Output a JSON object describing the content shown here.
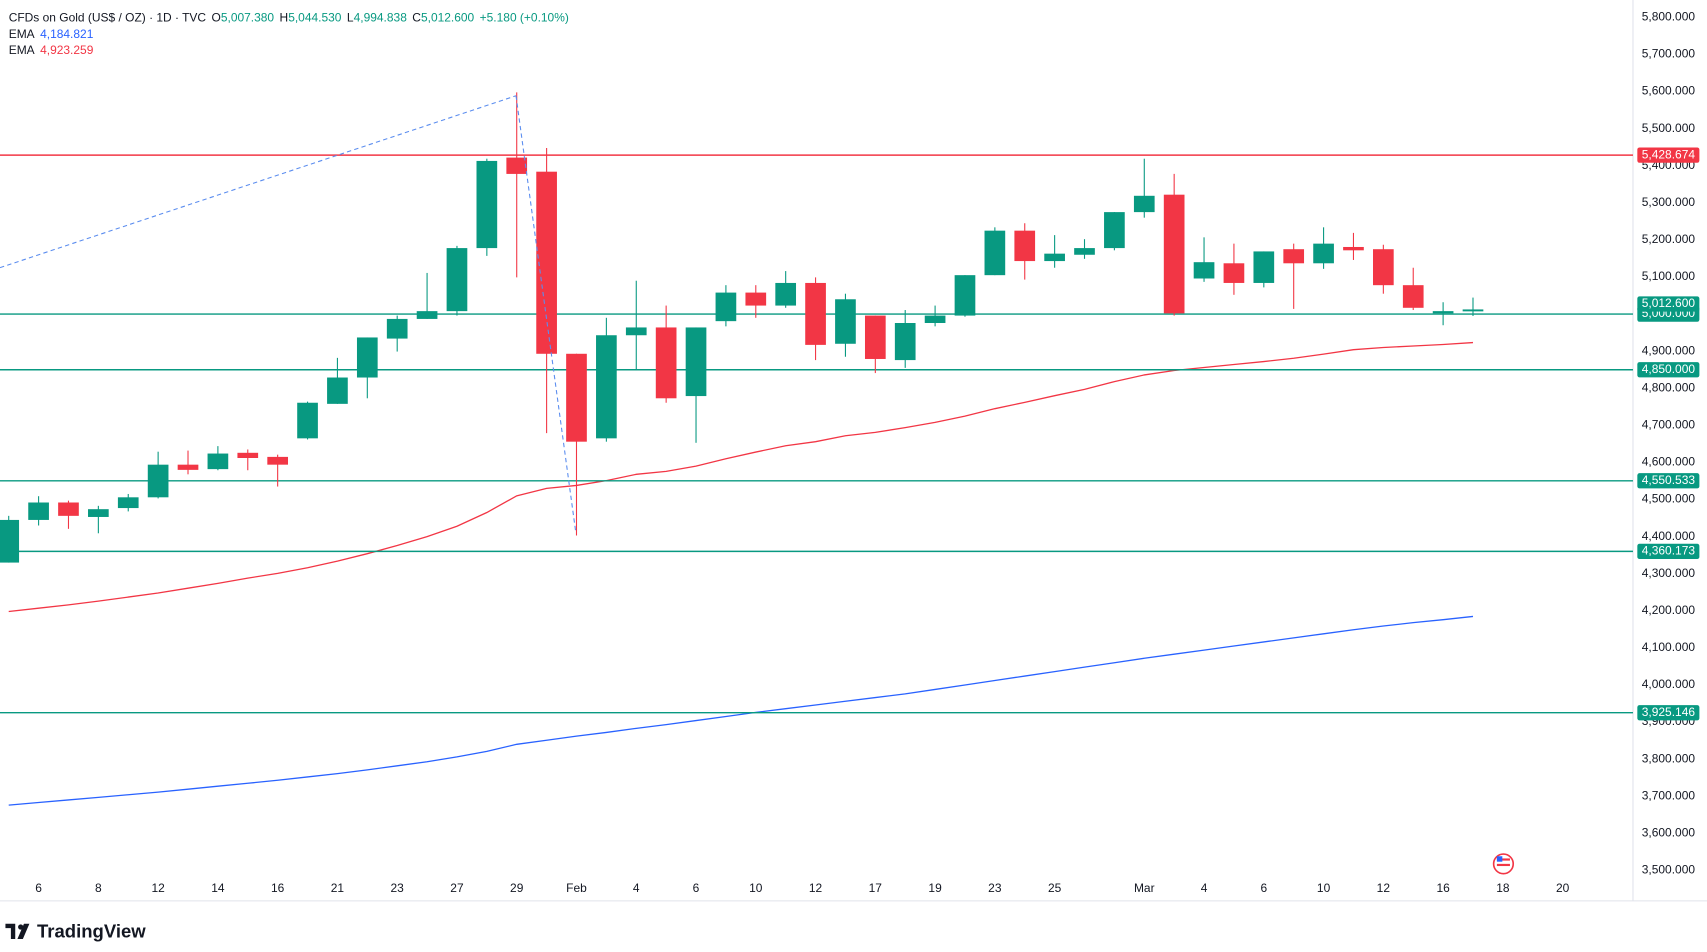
{
  "chart_data": {
    "type": "candlestick",
    "header": {
      "title": "CFDs on Gold (US$ / OZ) · 1D · TVC",
      "ohlc": [
        {
          "key": "O",
          "value": "5,007.380"
        },
        {
          "key": "H",
          "value": "5,044.530"
        },
        {
          "key": "L",
          "value": "4,994.838"
        },
        {
          "key": "C",
          "value": "5,012.600"
        }
      ],
      "change": "+5.180 (+0.10%)"
    },
    "brand": "TradingView",
    "categories": [
      null,
      "6",
      null,
      "8",
      null,
      "12",
      null,
      "14",
      null,
      "16",
      null,
      "21",
      null,
      "23",
      null,
      "27",
      null,
      "29",
      null,
      "Feb",
      null,
      "4",
      null,
      "6",
      null,
      "10",
      null,
      "12",
      null,
      "17",
      null,
      "19",
      null,
      "23",
      null,
      "25",
      null,
      null,
      "Mar",
      null,
      "4",
      null,
      "6",
      null,
      "10",
      null,
      "12",
      null,
      "16",
      null,
      "18",
      null,
      "20"
    ],
    "open": [
      4330,
      4445,
      4492,
      4453,
      4477,
      4506,
      4594,
      4582,
      4626,
      4615,
      4665,
      4758,
      4829,
      4934,
      4987,
      5008,
      5178,
      5422,
      5384,
      4893,
      4665,
      4943,
      4964,
      4779,
      4981,
      5058,
      5023,
      5084,
      4920,
      4996,
      4876,
      4976,
      4996,
      5105,
      5225,
      5143,
      5160,
      5178,
      5275,
      5322,
      5096,
      5137,
      5084,
      5175,
      5137,
      5181,
      5175,
      5078,
      5002,
      5007.38,
      null,
      null,
      null
    ],
    "high": [
      4456,
      4509,
      4497,
      4483,
      4515,
      4629,
      4632,
      4644,
      4635,
      4621,
      4764,
      4882,
      4937,
      4996,
      5111,
      5184,
      5419,
      5598,
      5448,
      4893,
      4990,
      5090,
      5023,
      4964,
      5078,
      5078,
      5116,
      5099,
      5055,
      4996,
      5011,
      5023,
      5105,
      5234,
      5245,
      5213,
      5202,
      5275,
      5419,
      5378,
      5207,
      5190,
      5169,
      5190,
      5234,
      5219,
      5187,
      5125,
      5032,
      5044.53,
      null,
      null,
      null
    ],
    "low": [
      4330,
      4430,
      4421,
      4409,
      4468,
      4503,
      4568,
      4579,
      4579,
      4535,
      4662,
      4758,
      4773,
      4899,
      4987,
      4996,
      5157,
      5099,
      4679,
      4403,
      4656,
      4849,
      4761,
      4653,
      4967,
      4990,
      5017,
      4876,
      4885,
      4841,
      4855,
      4967,
      4993,
      5105,
      5093,
      5125,
      5149,
      5172,
      5260,
      4996,
      5087,
      5052,
      5072,
      5014,
      5122,
      5146,
      5055,
      5011,
      4970,
      4994.838,
      null,
      null,
      null
    ],
    "close": [
      4445,
      4492,
      4456,
      4474,
      4506,
      4594,
      4580,
      4624,
      4612,
      4594,
      4761,
      4829,
      4937,
      4987,
      5008,
      5178,
      5413,
      5378,
      4893,
      4656,
      4943,
      4964,
      4773,
      4964,
      5058,
      5023,
      5084,
      4917,
      5040,
      4879,
      4976,
      4996,
      5105,
      5225,
      5143,
      5163,
      5178,
      5275,
      5319,
      5002,
      5140,
      5084,
      5169,
      5137,
      5190,
      5172,
      5078,
      5017,
      5008,
      5012.6,
      null,
      null,
      null
    ],
    "up_color": "#089981",
    "down_color": "#f23645",
    "series": [
      {
        "name": "EMA",
        "legend_value": "4,184.821",
        "color": "#2962ff",
        "values": [
          3676,
          3683,
          3690,
          3697,
          3704,
          3711,
          3719,
          3727,
          3735,
          3743,
          3752,
          3761,
          3771,
          3782,
          3793,
          3806,
          3821,
          3840,
          3851,
          3862,
          3872,
          3883,
          3893,
          3904,
          3915,
          3926,
          3936,
          3946,
          3956,
          3966,
          3976,
          3988,
          4000,
          4012,
          4024,
          4036,
          4048,
          4060,
          4072,
          4083,
          4094,
          4105,
          4116,
          4127,
          4138,
          4149,
          4159,
          4168,
          4176,
          4184.821,
          null,
          null,
          null
        ]
      },
      {
        "name": "EMA",
        "legend_value": "4,923.259",
        "color": "#f23645",
        "values": [
          4198,
          4207,
          4216,
          4226,
          4237,
          4248,
          4261,
          4274,
          4288,
          4301,
          4316,
          4334,
          4354,
          4376,
          4400,
          4428,
          4465,
          4510,
          4530,
          4538,
          4551,
          4568,
          4576,
          4590,
          4610,
          4628,
          4645,
          4656,
          4672,
          4681,
          4694,
          4708,
          4725,
          4745,
          4762,
          4780,
          4797,
          4818,
          4836,
          4848,
          4856,
          4864,
          4872,
          4881,
          4892,
          4904,
          4910,
          4914,
          4918,
          4923.259,
          null,
          null,
          null
        ]
      }
    ],
    "levels": [
      {
        "value": 5428.674,
        "label": "5,428.674",
        "color": "#f23645"
      },
      {
        "value": 5000,
        "label": "5,000.000",
        "color": "#089981"
      },
      {
        "value": 4850,
        "label": "4,850.000",
        "color": "#089981"
      },
      {
        "value": 4550.533,
        "label": "4,550.533",
        "color": "#089981"
      },
      {
        "value": 4360.173,
        "label": "4,360.173",
        "color": "#089981"
      },
      {
        "value": 3925.146,
        "label": "3,925.146",
        "color": "#089981"
      }
    ],
    "last_price": {
      "value": 5012.6,
      "label": "5,012.600",
      "color": "#089981"
    },
    "ylim": [
      3500,
      5800
    ],
    "yticks": [
      {
        "value": 3500,
        "label": "3,500.000"
      },
      {
        "value": 3600,
        "label": "3,600.000"
      },
      {
        "value": 3700,
        "label": "3,700.000"
      },
      {
        "value": 3800,
        "label": "3,800.000"
      },
      {
        "value": 3900,
        "label": "3,900.000"
      },
      {
        "value": 4000,
        "label": "4,000.000"
      },
      {
        "value": 4100,
        "label": "4,100.000"
      },
      {
        "value": 4200,
        "label": "4,200.000"
      },
      {
        "value": 4300,
        "label": "4,300.000"
      },
      {
        "value": 4400,
        "label": "4,400.000"
      },
      {
        "value": 4500,
        "label": "4,500.000"
      },
      {
        "value": 4600,
        "label": "4,600.000"
      },
      {
        "value": 4700,
        "label": "4,700.000"
      },
      {
        "value": 4800,
        "label": "4,800.000"
      },
      {
        "value": 4900,
        "label": "4,900.000"
      },
      {
        "value": 5000,
        "label": "5,000.000"
      },
      {
        "value": 5100,
        "label": "5,100.000"
      },
      {
        "value": 5200,
        "label": "5,200.000"
      },
      {
        "value": 5300,
        "label": "5,300.000"
      },
      {
        "value": 5400,
        "label": "5,400.000"
      },
      {
        "value": 5500,
        "label": "5,500.000"
      },
      {
        "value": 5600,
        "label": "5,600.000"
      },
      {
        "value": 5700,
        "label": "5,700.000"
      },
      {
        "value": 5800,
        "label": "5,800.000"
      }
    ]
  }
}
